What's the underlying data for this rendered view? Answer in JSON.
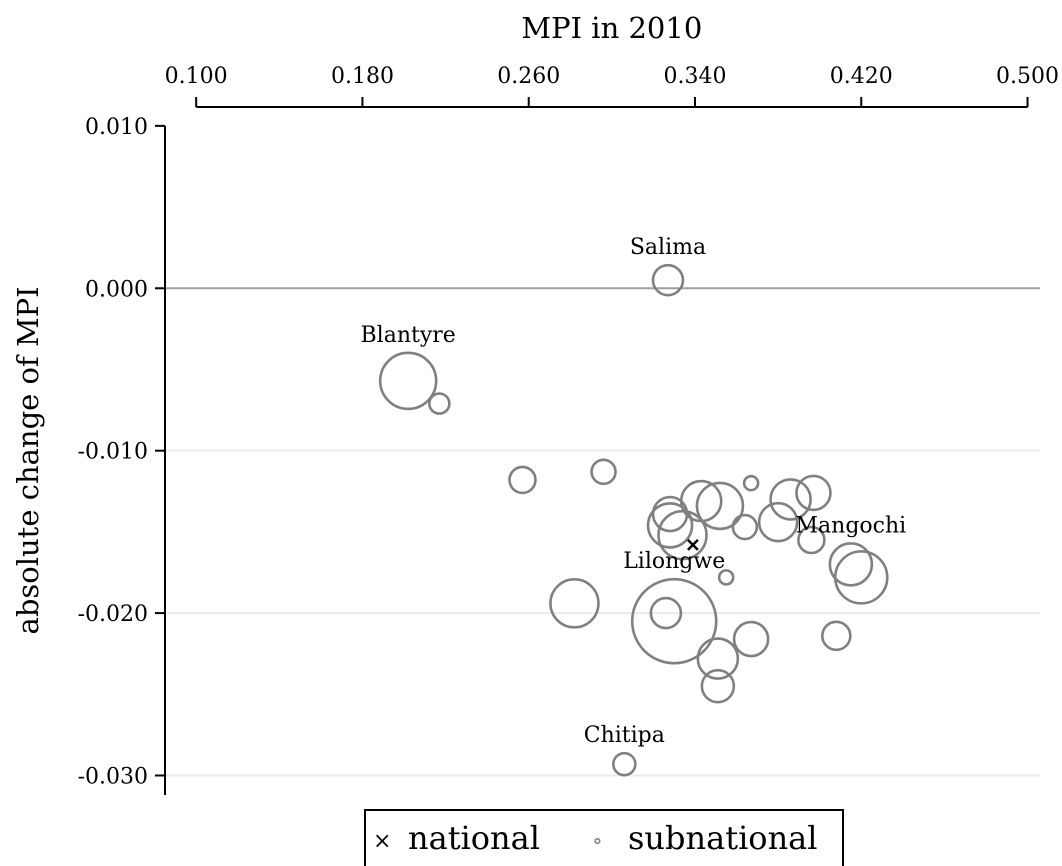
{
  "chart_data": {
    "type": "scatter",
    "title": "",
    "xlabel": "MPI in 2010",
    "ylabel": "absolute change of MPI",
    "x_axis_position": "top",
    "xlim": [
      0.085,
      0.506
    ],
    "ylim": [
      -0.0312,
      0.0119
    ],
    "x_ticks": [
      "0.100",
      "0.180",
      "0.260",
      "0.340",
      "0.420",
      "0.500"
    ],
    "x_tick_values": [
      0.1,
      0.18,
      0.26,
      0.34,
      0.42,
      0.5
    ],
    "y_ticks": [
      "0.010",
      "0.000",
      "-0.010",
      "-0.020",
      "-0.030"
    ],
    "y_tick_values": [
      0.01,
      0.0,
      -0.01,
      -0.02,
      -0.03
    ],
    "grid": "horizontal",
    "reference_line_y": 0.0,
    "marker_sizes": "proportional to population",
    "colors": {
      "subnational": "#808080",
      "national": "#000000",
      "grid": "#ebebeb",
      "zero_line": "#a0a0a0"
    },
    "series": [
      {
        "name": "national",
        "marker": "x",
        "points": [
          {
            "x": 0.339,
            "y": -0.0158
          }
        ]
      },
      {
        "name": "subnational",
        "marker": "hollow-circle",
        "points": [
          {
            "x": 0.327,
            "y": 0.0005,
            "r": 15,
            "label": "Salima"
          },
          {
            "x": 0.202,
            "y": -0.0057,
            "r": 28,
            "label": "Blantyre"
          },
          {
            "x": 0.217,
            "y": -0.0071,
            "r": 10
          },
          {
            "x": 0.257,
            "y": -0.0118,
            "r": 13
          },
          {
            "x": 0.296,
            "y": -0.0113,
            "r": 12
          },
          {
            "x": 0.328,
            "y": -0.0139,
            "r": 17
          },
          {
            "x": 0.328,
            "y": -0.0146,
            "r": 22
          },
          {
            "x": 0.334,
            "y": -0.0152,
            "r": 24
          },
          {
            "x": 0.343,
            "y": -0.0131,
            "r": 20
          },
          {
            "x": 0.352,
            "y": -0.0134,
            "r": 23
          },
          {
            "x": 0.367,
            "y": -0.012,
            "r": 7
          },
          {
            "x": 0.364,
            "y": -0.0147,
            "r": 12
          },
          {
            "x": 0.38,
            "y": -0.0144,
            "r": 19
          },
          {
            "x": 0.386,
            "y": -0.013,
            "r": 20
          },
          {
            "x": 0.397,
            "y": -0.0126,
            "r": 17
          },
          {
            "x": 0.396,
            "y": -0.0155,
            "r": 13
          },
          {
            "x": 0.355,
            "y": -0.0178,
            "r": 7
          },
          {
            "x": 0.415,
            "y": -0.017,
            "r": 21,
            "label": "Mangochi"
          },
          {
            "x": 0.42,
            "y": -0.0178,
            "r": 26
          },
          {
            "x": 0.282,
            "y": -0.0194,
            "r": 24
          },
          {
            "x": 0.326,
            "y": -0.02,
            "r": 15
          },
          {
            "x": 0.33,
            "y": -0.0205,
            "r": 42,
            "label": "Lilongwe"
          },
          {
            "x": 0.351,
            "y": -0.0228,
            "r": 20
          },
          {
            "x": 0.351,
            "y": -0.0245,
            "r": 16
          },
          {
            "x": 0.367,
            "y": -0.0216,
            "r": 17
          },
          {
            "x": 0.408,
            "y": -0.0214,
            "r": 14
          },
          {
            "x": 0.306,
            "y": -0.0293,
            "r": 11,
            "label": "Chitipa"
          }
        ]
      }
    ],
    "legend": {
      "position": "bottom",
      "items": [
        {
          "label": "national",
          "marker": "×"
        },
        {
          "label": "subnational",
          "marker": "∘"
        }
      ]
    }
  }
}
